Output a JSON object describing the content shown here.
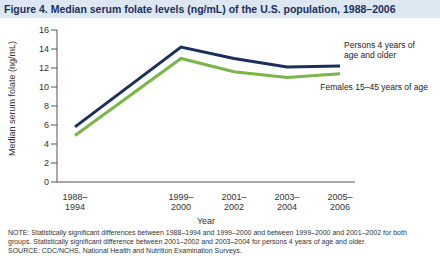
{
  "chart_data": {
    "type": "line",
    "title": "Figure 4. Median serum folate levels (ng/mL) of the U.S. population, 1988–2006",
    "x_label": "Year",
    "y_label": "Median serum folate (ng/mL)",
    "categories": [
      "1988–1994",
      null,
      "1999–2000",
      "2001–2002",
      "2003–2004",
      "2005–2006"
    ],
    "series": [
      {
        "name": "Persons 4 years of age and older",
        "color": "#1b2f5e",
        "values": [
          5.8,
          null,
          14.2,
          13.0,
          12.1,
          12.2
        ]
      },
      {
        "name": "Females 15–45 years of age",
        "color": "#7ab648",
        "values": [
          4.9,
          null,
          13.0,
          11.6,
          11.0,
          11.4
        ]
      }
    ],
    "ylim": [
      0,
      16
    ],
    "yticks": [
      0,
      2,
      4,
      6,
      8,
      10,
      12,
      14,
      16
    ],
    "grid": false,
    "notes": [
      "NOTE: Statistically significant differences between 1988–1994 and 1999–2000 and between 1999–2000 and 2001–2002 for both groups. Statistically significant difference between 2001–2002 and 2003–2004 for persons 4 years of age and older.",
      "SOURCE: CDC/NCHS, National Health and Nutrition Examination Surveys."
    ]
  }
}
